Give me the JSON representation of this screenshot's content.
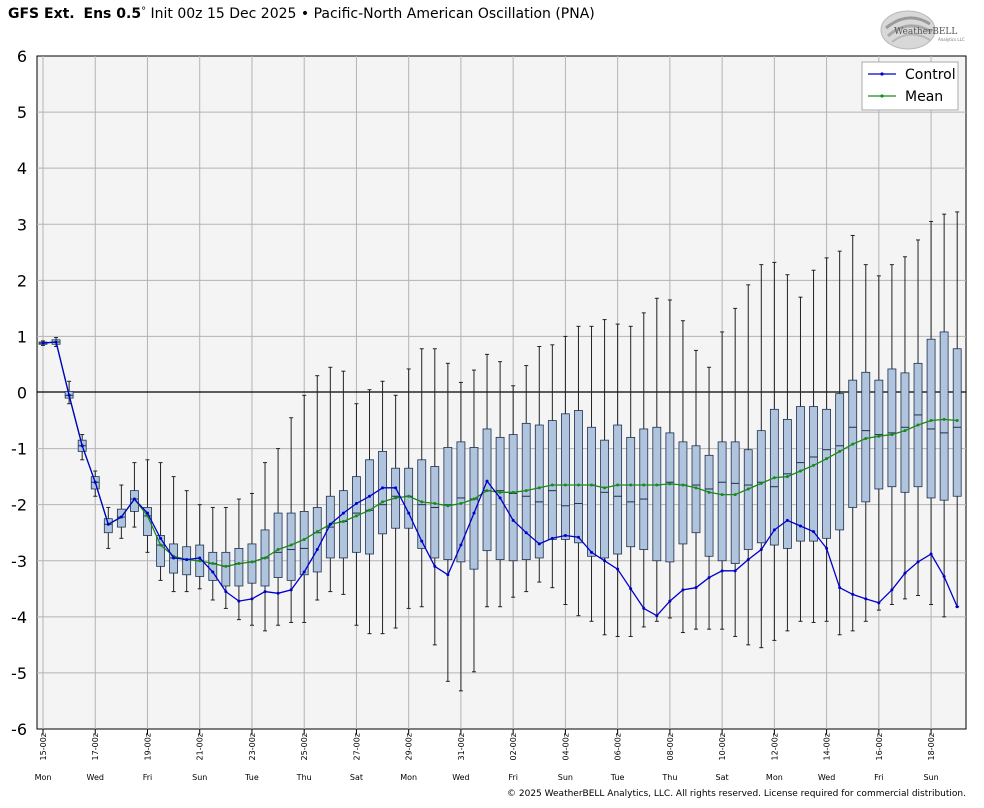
{
  "header": {
    "model": "GFS Ext.",
    "ens": "Ens 0.5",
    "degree": "°",
    "init": "Init 00z 15 Dec 2025",
    "bullet": "•",
    "index": "Pacific-North American Oscillation (PNA)"
  },
  "logo": {
    "brand": "WeatherBELL",
    "sub": "Analytics LLC"
  },
  "copyright": "© 2025 WeatherBELL Analytics, LLC. All rights reserved. License required for commercial distribution.",
  "chart_data": {
    "type": "box-line",
    "title": "",
    "xlabel": "",
    "ylabel": "",
    "ylim": [
      -6,
      6
    ],
    "yticks": [
      6,
      5,
      4,
      3,
      2,
      1,
      0,
      -1,
      -2,
      -3,
      -4,
      -5,
      -6
    ],
    "grid": true,
    "legend_position": "top-right",
    "x_start_index": 0,
    "x_end_index": 71,
    "date_ticks": [
      {
        "x": 0,
        "date": "15-00z",
        "day": "Mon"
      },
      {
        "x": 4,
        "date": "17-00z",
        "day": "Wed"
      },
      {
        "x": 8,
        "date": "19-00z",
        "day": "Fri"
      },
      {
        "x": 12,
        "date": "21-00z",
        "day": "Sun"
      },
      {
        "x": 16,
        "date": "23-00z",
        "day": "Tue"
      },
      {
        "x": 20,
        "date": "25-00z",
        "day": "Thu"
      },
      {
        "x": 24,
        "date": "27-00z",
        "day": "Sat"
      },
      {
        "x": 28,
        "date": "29-00z",
        "day": "Mon"
      },
      {
        "x": 32,
        "date": "31-00z",
        "day": "Wed"
      },
      {
        "x": 36,
        "date": "02-00z",
        "day": "Fri"
      },
      {
        "x": 40,
        "date": "04-00z",
        "day": "Sun"
      },
      {
        "x": 44,
        "date": "06-00z",
        "day": "Tue"
      },
      {
        "x": 48,
        "date": "08-00z",
        "day": "Thu"
      },
      {
        "x": 52,
        "date": "10-00z",
        "day": "Sat"
      },
      {
        "x": 56,
        "date": "12-00z",
        "day": "Mon"
      },
      {
        "x": 60,
        "date": "14-00z",
        "day": "Wed"
      },
      {
        "x": 64,
        "date": "16-00z",
        "day": "Fri"
      },
      {
        "x": 68,
        "date": "18-00z",
        "day": "Sun"
      }
    ],
    "series": [
      {
        "name": "Control",
        "color": "#0000cc",
        "values": [
          0.88,
          0.9,
          -0.05,
          -0.95,
          -1.6,
          -2.35,
          -2.22,
          -1.9,
          -2.15,
          -2.6,
          -2.95,
          -2.98,
          -2.95,
          -3.2,
          -3.55,
          -3.72,
          -3.68,
          -3.55,
          -3.58,
          -3.52,
          -3.2,
          -2.8,
          -2.35,
          -2.15,
          -1.98,
          -1.85,
          -1.7,
          -1.7,
          -2.15,
          -2.65,
          -3.1,
          -3.25,
          -2.72,
          -2.15,
          -1.58,
          -1.88,
          -2.28,
          -2.5,
          -2.7,
          -2.6,
          -2.55,
          -2.58,
          -2.85,
          -3.0,
          -3.15,
          -3.5,
          -3.85,
          -3.98,
          -3.72,
          -3.52,
          -3.48,
          -3.3,
          -3.18,
          -3.18,
          -2.98,
          -2.8,
          -2.45,
          -2.28,
          -2.38,
          -2.48,
          -2.78,
          -3.48,
          -3.6,
          -3.68,
          -3.75,
          -3.52,
          -3.22,
          -3.02,
          -2.88,
          -3.28,
          -3.82
        ]
      },
      {
        "name": "Mean",
        "color": "#1a8a1a",
        "values": [
          0.88,
          0.9,
          -0.05,
          -0.95,
          -1.6,
          -2.35,
          -2.22,
          -1.9,
          -2.2,
          -2.72,
          -2.92,
          -2.98,
          -3.0,
          -3.05,
          -3.1,
          -3.05,
          -3.02,
          -2.95,
          -2.8,
          -2.72,
          -2.62,
          -2.48,
          -2.35,
          -2.3,
          -2.2,
          -2.1,
          -1.95,
          -1.88,
          -1.85,
          -1.95,
          -1.98,
          -2.02,
          -1.98,
          -1.9,
          -1.75,
          -1.78,
          -1.78,
          -1.75,
          -1.7,
          -1.65,
          -1.65,
          -1.65,
          -1.65,
          -1.7,
          -1.65,
          -1.65,
          -1.65,
          -1.65,
          -1.63,
          -1.65,
          -1.7,
          -1.78,
          -1.82,
          -1.82,
          -1.72,
          -1.62,
          -1.52,
          -1.5,
          -1.4,
          -1.3,
          -1.18,
          -1.05,
          -0.92,
          -0.82,
          -0.78,
          -0.75,
          -0.68,
          -0.58,
          -0.5,
          -0.48,
          -0.5
        ]
      }
    ],
    "boxes": [
      {
        "x": 0,
        "min": 0.84,
        "q1": 0.86,
        "med": 0.88,
        "q3": 0.9,
        "max": 0.92
      },
      {
        "x": 1,
        "min": 0.82,
        "q1": 0.86,
        "med": 0.9,
        "q3": 0.94,
        "max": 0.98
      },
      {
        "x": 2,
        "min": -0.2,
        "q1": -0.1,
        "med": -0.05,
        "q3": 0.02,
        "max": 0.2
      },
      {
        "x": 3,
        "min": -1.2,
        "q1": -1.05,
        "med": -0.95,
        "q3": -0.85,
        "max": -0.75
      },
      {
        "x": 4,
        "min": -1.85,
        "q1": -1.72,
        "med": -1.6,
        "q3": -1.5,
        "max": -1.4
      },
      {
        "x": 5,
        "min": -2.78,
        "q1": -2.5,
        "med": -2.35,
        "q3": -2.25,
        "max": -2.05
      },
      {
        "x": 6,
        "min": -2.6,
        "q1": -2.4,
        "med": -2.22,
        "q3": -2.08,
        "max": -1.65
      },
      {
        "x": 7,
        "min": -2.4,
        "q1": -2.12,
        "med": -1.9,
        "q3": -1.75,
        "max": -1.25
      },
      {
        "x": 8,
        "min": -2.85,
        "q1": -2.55,
        "med": -2.2,
        "q3": -2.05,
        "max": -1.2
      },
      {
        "x": 9,
        "min": -3.35,
        "q1": -3.1,
        "med": -2.72,
        "q3": -2.55,
        "max": -1.25
      },
      {
        "x": 10,
        "min": -3.55,
        "q1": -3.22,
        "med": -2.95,
        "q3": -2.7,
        "max": -1.5
      },
      {
        "x": 11,
        "min": -3.55,
        "q1": -3.25,
        "med": -2.98,
        "q3": -2.75,
        "max": -1.75
      },
      {
        "x": 12,
        "min": -3.5,
        "q1": -3.28,
        "med": -3.0,
        "q3": -2.72,
        "max": -2.0
      },
      {
        "x": 13,
        "min": -3.7,
        "q1": -3.35,
        "med": -3.05,
        "q3": -2.85,
        "max": -2.05
      },
      {
        "x": 14,
        "min": -3.85,
        "q1": -3.45,
        "med": -3.1,
        "q3": -2.85,
        "max": -2.05
      },
      {
        "x": 15,
        "min": -4.05,
        "q1": -3.45,
        "med": -3.05,
        "q3": -2.78,
        "max": -1.9
      },
      {
        "x": 16,
        "min": -4.15,
        "q1": -3.4,
        "med": -3.02,
        "q3": -2.7,
        "max": -1.8
      },
      {
        "x": 17,
        "min": -4.25,
        "q1": -3.45,
        "med": -2.95,
        "q3": -2.45,
        "max": -1.25
      },
      {
        "x": 18,
        "min": -4.15,
        "q1": -3.3,
        "med": -2.85,
        "q3": -2.15,
        "max": -1.0
      },
      {
        "x": 19,
        "min": -4.1,
        "q1": -3.35,
        "med": -2.8,
        "q3": -2.15,
        "max": -0.45
      },
      {
        "x": 20,
        "min": -4.1,
        "q1": -3.25,
        "med": -2.78,
        "q3": -2.12,
        "max": -0.05
      },
      {
        "x": 21,
        "min": -3.7,
        "q1": -3.2,
        "med": -2.5,
        "q3": -2.05,
        "max": 0.3
      },
      {
        "x": 22,
        "min": -3.55,
        "q1": -2.95,
        "med": -2.4,
        "q3": -1.85,
        "max": 0.45
      },
      {
        "x": 23,
        "min": -3.6,
        "q1": -2.95,
        "med": -2.3,
        "q3": -1.75,
        "max": 0.38
      },
      {
        "x": 24,
        "min": -4.15,
        "q1": -2.85,
        "med": -2.15,
        "q3": -1.5,
        "max": -0.2
      },
      {
        "x": 25,
        "min": -4.3,
        "q1": -2.88,
        "med": -2.1,
        "q3": -1.2,
        "max": 0.05
      },
      {
        "x": 26,
        "min": -4.3,
        "q1": -2.52,
        "med": -2.0,
        "q3": -1.05,
        "max": 0.2
      },
      {
        "x": 27,
        "min": -4.2,
        "q1": -2.42,
        "med": -1.85,
        "q3": -1.35,
        "max": -0.05
      },
      {
        "x": 28,
        "min": -3.85,
        "q1": -2.42,
        "med": -1.85,
        "q3": -1.35,
        "max": 0.42
      },
      {
        "x": 29,
        "min": -3.82,
        "q1": -2.78,
        "med": -2.0,
        "q3": -1.2,
        "max": 0.78
      },
      {
        "x": 30,
        "min": -4.5,
        "q1": -2.95,
        "med": -2.05,
        "q3": -1.32,
        "max": 0.78
      },
      {
        "x": 31,
        "min": -5.15,
        "q1": -2.98,
        "med": -2.0,
        "q3": -0.98,
        "max": 0.52
      },
      {
        "x": 32,
        "min": -5.32,
        "q1": -3.02,
        "med": -1.88,
        "q3": -0.88,
        "max": 0.18
      },
      {
        "x": 33,
        "min": -4.98,
        "q1": -3.15,
        "med": -1.9,
        "q3": -0.98,
        "max": 0.4
      },
      {
        "x": 34,
        "min": -3.82,
        "q1": -2.82,
        "med": -1.75,
        "q3": -0.65,
        "max": 0.68
      },
      {
        "x": 35,
        "min": -3.82,
        "q1": -2.98,
        "med": -1.75,
        "q3": -0.8,
        "max": 0.55
      },
      {
        "x": 36,
        "min": -3.65,
        "q1": -3.0,
        "med": -1.8,
        "q3": -0.75,
        "max": 0.12
      },
      {
        "x": 37,
        "min": -3.55,
        "q1": -2.98,
        "med": -1.85,
        "q3": -0.55,
        "max": 0.48
      },
      {
        "x": 38,
        "min": -3.38,
        "q1": -2.95,
        "med": -1.95,
        "q3": -0.58,
        "max": 0.82
      },
      {
        "x": 39,
        "min": -3.48,
        "q1": -2.62,
        "med": -1.75,
        "q3": -0.5,
        "max": 0.85
      },
      {
        "x": 40,
        "min": -3.78,
        "q1": -2.62,
        "med": -2.02,
        "q3": -0.38,
        "max": 1.0
      },
      {
        "x": 41,
        "min": -3.98,
        "q1": -2.68,
        "med": -1.98,
        "q3": -0.32,
        "max": 1.18
      },
      {
        "x": 42,
        "min": -4.08,
        "q1": -2.92,
        "med": -1.65,
        "q3": -0.62,
        "max": 1.18
      },
      {
        "x": 43,
        "min": -4.32,
        "q1": -2.95,
        "med": -1.78,
        "q3": -0.85,
        "max": 1.3
      },
      {
        "x": 44,
        "min": -4.35,
        "q1": -2.88,
        "med": -1.85,
        "q3": -0.58,
        "max": 1.22
      },
      {
        "x": 45,
        "min": -4.35,
        "q1": -2.75,
        "med": -1.95,
        "q3": -0.8,
        "max": 1.18
      },
      {
        "x": 46,
        "min": -4.18,
        "q1": -2.8,
        "med": -1.9,
        "q3": -0.65,
        "max": 1.42
      },
      {
        "x": 47,
        "min": -4.08,
        "q1": -3.0,
        "med": -1.65,
        "q3": -0.62,
        "max": 1.68
      },
      {
        "x": 48,
        "min": -4.02,
        "q1": -3.02,
        "med": -1.6,
        "q3": -0.72,
        "max": 1.65
      },
      {
        "x": 49,
        "min": -4.28,
        "q1": -2.7,
        "med": -1.65,
        "q3": -0.88,
        "max": 1.28
      },
      {
        "x": 50,
        "min": -4.22,
        "q1": -2.5,
        "med": -1.65,
        "q3": -0.95,
        "max": 0.75
      },
      {
        "x": 51,
        "min": -4.22,
        "q1": -2.92,
        "med": -1.72,
        "q3": -1.12,
        "max": 0.45
      },
      {
        "x": 52,
        "min": -4.22,
        "q1": -3.0,
        "med": -1.6,
        "q3": -0.88,
        "max": 1.08
      },
      {
        "x": 53,
        "min": -4.35,
        "q1": -3.05,
        "med": -1.62,
        "q3": -0.88,
        "max": 1.5
      },
      {
        "x": 54,
        "min": -4.5,
        "q1": -2.8,
        "med": -1.65,
        "q3": -1.02,
        "max": 1.92
      },
      {
        "x": 55,
        "min": -4.55,
        "q1": -2.68,
        "med": -1.6,
        "q3": -0.68,
        "max": 2.28
      },
      {
        "x": 56,
        "min": -4.42,
        "q1": -2.72,
        "med": -1.68,
        "q3": -0.3,
        "max": 2.32
      },
      {
        "x": 57,
        "min": -4.25,
        "q1": -2.78,
        "med": -1.45,
        "q3": -0.48,
        "max": 2.1
      },
      {
        "x": 58,
        "min": -4.08,
        "q1": -2.65,
        "med": -1.25,
        "q3": -0.25,
        "max": 1.7
      },
      {
        "x": 59,
        "min": -4.1,
        "q1": -2.65,
        "med": -1.15,
        "q3": -0.25,
        "max": 2.18
      },
      {
        "x": 60,
        "min": -4.08,
        "q1": -2.6,
        "med": -1.02,
        "q3": -0.3,
        "max": 2.4
      },
      {
        "x": 61,
        "min": -4.32,
        "q1": -2.45,
        "med": -0.95,
        "q3": -0.02,
        "max": 2.52
      },
      {
        "x": 62,
        "min": -4.25,
        "q1": -2.05,
        "med": -0.62,
        "q3": 0.22,
        "max": 2.8
      },
      {
        "x": 63,
        "min": -4.08,
        "q1": -1.95,
        "med": -0.68,
        "q3": 0.36,
        "max": 2.28
      },
      {
        "x": 64,
        "min": -3.88,
        "q1": -1.72,
        "med": -0.75,
        "q3": 0.22,
        "max": 2.08
      },
      {
        "x": 65,
        "min": -3.78,
        "q1": -1.68,
        "med": -0.72,
        "q3": 0.42,
        "max": 2.28
      },
      {
        "x": 66,
        "min": -3.68,
        "q1": -1.78,
        "med": -0.62,
        "q3": 0.35,
        "max": 2.42
      },
      {
        "x": 67,
        "min": -3.62,
        "q1": -1.68,
        "med": -0.4,
        "q3": 0.52,
        "max": 2.72
      },
      {
        "x": 68,
        "min": -3.78,
        "q1": -1.88,
        "med": -0.65,
        "q3": 0.95,
        "max": 3.05
      },
      {
        "x": 69,
        "min": -4.0,
        "q1": -1.92,
        "med": -0.72,
        "q3": 1.08,
        "max": 3.18
      },
      {
        "x": 70,
        "min": -3.82,
        "q1": -1.85,
        "med": -0.62,
        "q3": 0.78,
        "max": 3.22
      }
    ]
  }
}
